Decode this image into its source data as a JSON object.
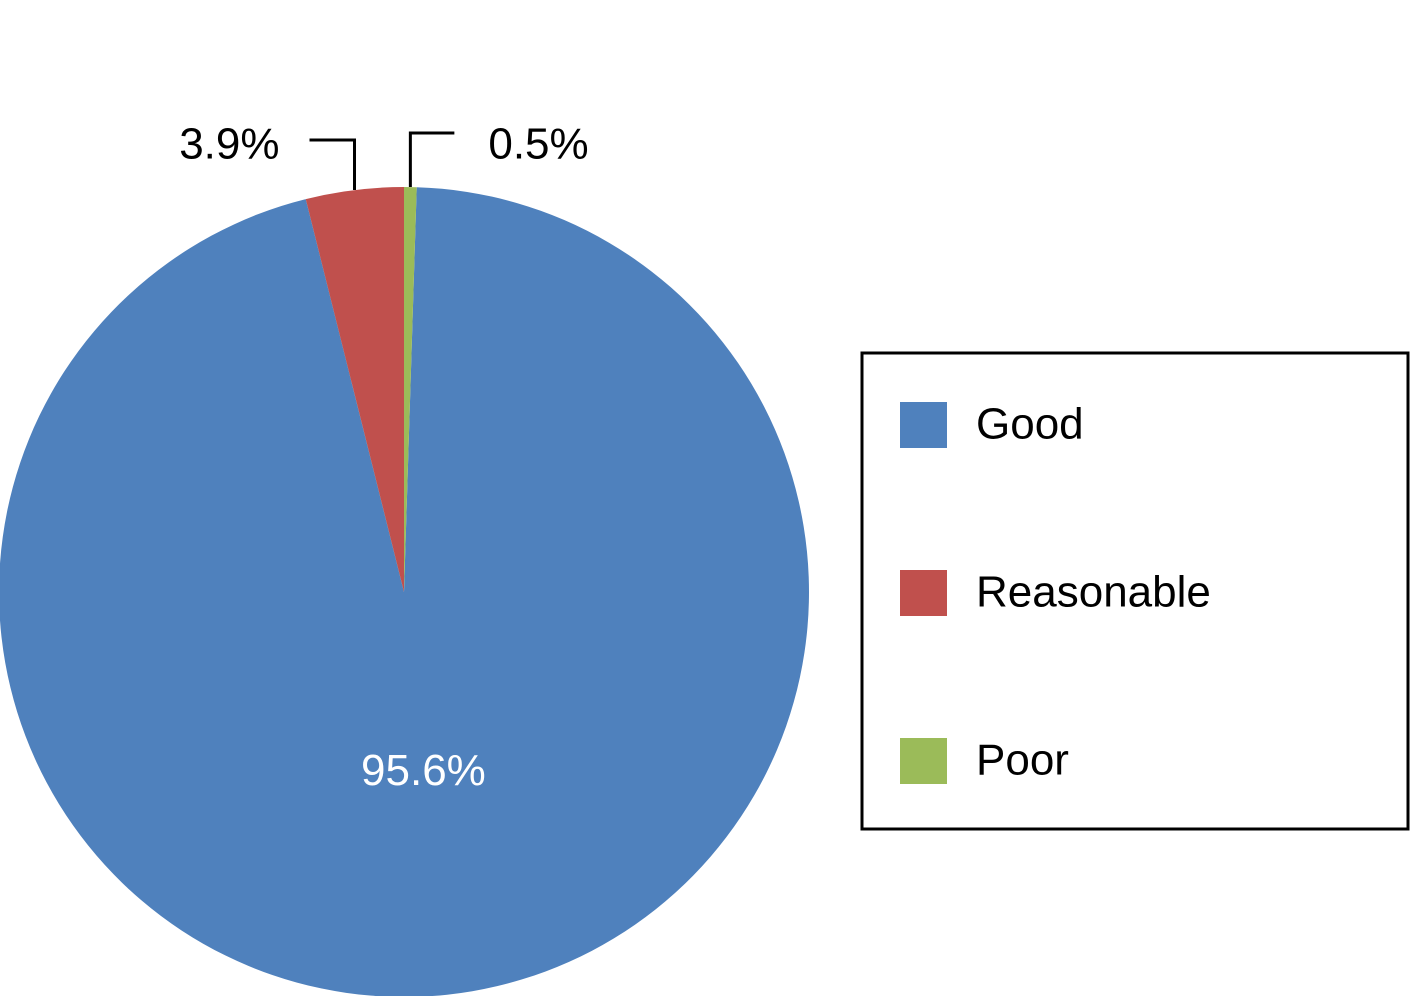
{
  "chart_data": {
    "type": "pie",
    "categories": [
      "Good",
      "Reasonable",
      "Poor"
    ],
    "values": [
      95.6,
      3.9,
      0.5
    ],
    "value_labels": [
      "95.6%",
      "3.9%",
      "0.5%"
    ],
    "colors": [
      "#4f81bd",
      "#c0504d",
      "#9bbb59"
    ],
    "legend": "right"
  }
}
